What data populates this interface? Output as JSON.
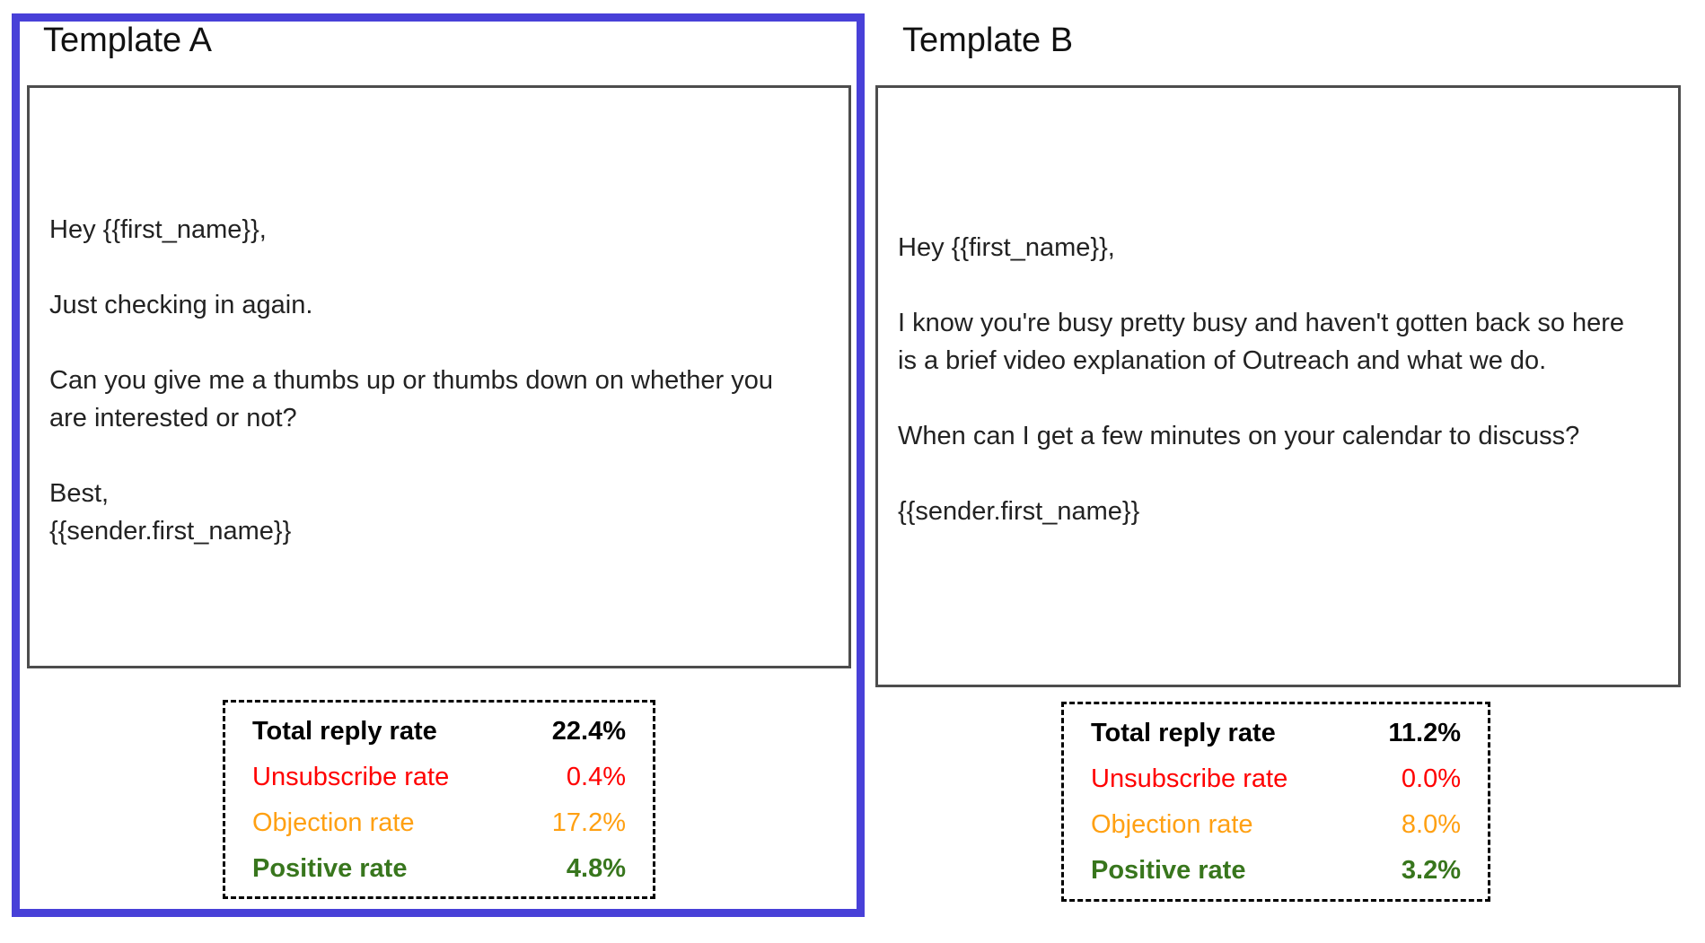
{
  "colors": {
    "selection_border": "#4840d8",
    "email_box_border": "#4d4d4d",
    "stats_box_border": "#000000",
    "total_reply_rate": "#000000",
    "unsubscribe_rate": "#ff0000",
    "objection_rate": "#ffa012",
    "positive_rate": "#38761d"
  },
  "templates": [
    {
      "title": "Template A",
      "selected": true,
      "body": "Hey {{first_name}},\n\nJust checking in again.\n\nCan you give me a thumbs up or thumbs down on whether you\nare interested or not?\n\nBest,\n{{sender.first_name}}",
      "stats": [
        {
          "label": "Total reply rate",
          "value": "22.4%"
        },
        {
          "label": "Unsubscribe rate",
          "value": "0.4%"
        },
        {
          "label": "Objection rate",
          "value": "17.2%"
        },
        {
          "label": "Positive rate",
          "value": "4.8%"
        }
      ]
    },
    {
      "title": "Template B",
      "selected": false,
      "body": "Hey {{first_name}},\n\nI know you're busy pretty busy and haven't gotten back so here\nis a brief video explanation of Outreach and what we do.\n\nWhen can I get a few minutes on your calendar to discuss?\n\n{{sender.first_name}}",
      "stats": [
        {
          "label": "Total reply rate",
          "value": "11.2%"
        },
        {
          "label": "Unsubscribe rate",
          "value": "0.0%"
        },
        {
          "label": "Objection rate",
          "value": "8.0%"
        },
        {
          "label": "Positive rate",
          "value": "3.2%"
        }
      ]
    }
  ]
}
